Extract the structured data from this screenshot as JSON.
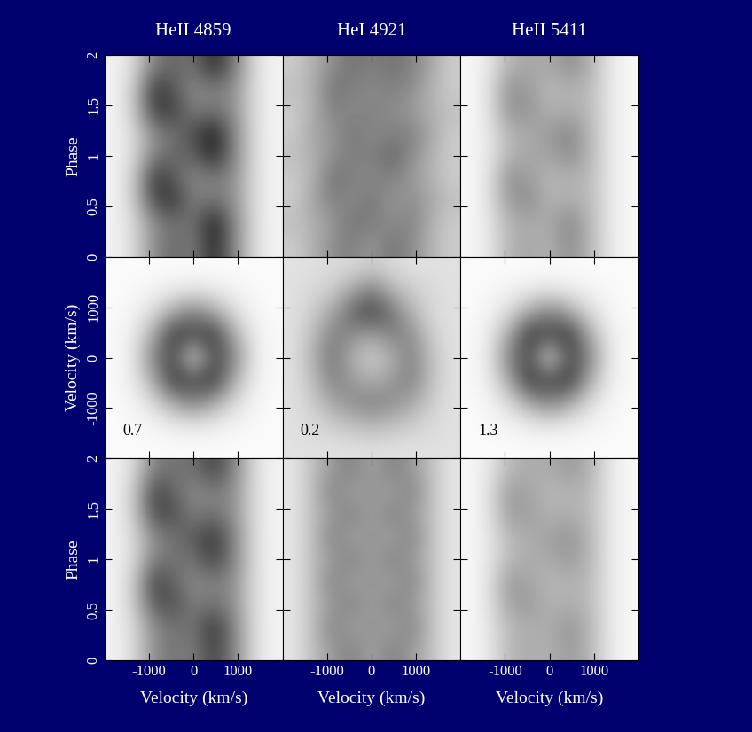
{
  "chart_data": [
    {
      "type": "heatmap",
      "title": "HeII 4859",
      "ylabel": "Phase",
      "tick_labels": "y",
      "xlim": [
        -2000,
        2000
      ],
      "ylim": [
        0,
        2
      ],
      "xticks": [
        -1000,
        0,
        1000
      ],
      "yticks": [
        0,
        0.5,
        1,
        1.5,
        2
      ],
      "zlim": [
        0,
        1
      ],
      "cells": [
        [
          0.05,
          0.15,
          0.45,
          0.6,
          0.5,
          0.85,
          0.5,
          0.15,
          0.05
        ],
        [
          0.05,
          0.15,
          0.45,
          0.55,
          0.55,
          0.9,
          0.5,
          0.15,
          0.05
        ],
        [
          0.05,
          0.2,
          0.7,
          0.8,
          0.5,
          0.55,
          0.45,
          0.15,
          0.05
        ],
        [
          0.05,
          0.2,
          0.8,
          0.65,
          0.45,
          0.5,
          0.45,
          0.15,
          0.05
        ],
        [
          0.05,
          0.15,
          0.5,
          0.6,
          0.6,
          0.85,
          0.5,
          0.15,
          0.05
        ],
        [
          0.05,
          0.15,
          0.45,
          0.55,
          0.7,
          0.9,
          0.5,
          0.15,
          0.05
        ],
        [
          0.05,
          0.2,
          0.75,
          0.75,
          0.5,
          0.55,
          0.45,
          0.15,
          0.05
        ],
        [
          0.05,
          0.2,
          0.8,
          0.65,
          0.45,
          0.5,
          0.45,
          0.15,
          0.05
        ],
        [
          0.05,
          0.15,
          0.5,
          0.6,
          0.55,
          0.85,
          0.55,
          0.15,
          0.05
        ]
      ]
    },
    {
      "type": "heatmap",
      "title": "HeI 4921",
      "tick_labels": false,
      "xlim": [
        -2000,
        2000
      ],
      "ylim": [
        0,
        2
      ],
      "xticks": [
        -1000,
        0,
        1000
      ],
      "yticks": [
        0,
        0.5,
        1,
        1.5,
        2
      ],
      "zlim": [
        0,
        1
      ],
      "cells": [
        [
          0.2,
          0.3,
          0.45,
          0.5,
          0.4,
          0.55,
          0.45,
          0.3,
          0.2
        ],
        [
          0.25,
          0.3,
          0.4,
          0.55,
          0.5,
          0.45,
          0.5,
          0.3,
          0.2
        ],
        [
          0.2,
          0.35,
          0.5,
          0.45,
          0.55,
          0.4,
          0.45,
          0.35,
          0.25
        ],
        [
          0.2,
          0.3,
          0.55,
          0.5,
          0.45,
          0.5,
          0.4,
          0.3,
          0.2
        ],
        [
          0.25,
          0.3,
          0.45,
          0.5,
          0.5,
          0.6,
          0.45,
          0.3,
          0.2
        ],
        [
          0.2,
          0.35,
          0.4,
          0.55,
          0.45,
          0.5,
          0.5,
          0.35,
          0.2
        ],
        [
          0.2,
          0.3,
          0.5,
          0.45,
          0.5,
          0.45,
          0.4,
          0.3,
          0.25
        ],
        [
          0.25,
          0.3,
          0.55,
          0.5,
          0.45,
          0.5,
          0.45,
          0.3,
          0.2
        ],
        [
          0.2,
          0.3,
          0.45,
          0.55,
          0.5,
          0.55,
          0.5,
          0.35,
          0.2
        ]
      ]
    },
    {
      "type": "heatmap",
      "title": "HeII 5411",
      "tick_labels": false,
      "xlim": [
        -2000,
        2000
      ],
      "ylim": [
        0,
        2
      ],
      "xticks": [
        -1000,
        0,
        1000
      ],
      "yticks": [
        0,
        0.5,
        1,
        1.5,
        2
      ],
      "zlim": [
        0,
        1
      ],
      "cells": [
        [
          0.03,
          0.1,
          0.3,
          0.35,
          0.3,
          0.45,
          0.3,
          0.1,
          0.03
        ],
        [
          0.03,
          0.1,
          0.3,
          0.33,
          0.33,
          0.48,
          0.3,
          0.1,
          0.03
        ],
        [
          0.03,
          0.12,
          0.4,
          0.45,
          0.3,
          0.33,
          0.28,
          0.1,
          0.03
        ],
        [
          0.03,
          0.12,
          0.45,
          0.38,
          0.28,
          0.3,
          0.28,
          0.1,
          0.03
        ],
        [
          0.03,
          0.1,
          0.3,
          0.35,
          0.35,
          0.45,
          0.3,
          0.1,
          0.03
        ],
        [
          0.03,
          0.1,
          0.3,
          0.33,
          0.4,
          0.48,
          0.3,
          0.1,
          0.03
        ],
        [
          0.03,
          0.12,
          0.42,
          0.42,
          0.3,
          0.33,
          0.28,
          0.1,
          0.03
        ],
        [
          0.03,
          0.12,
          0.45,
          0.38,
          0.28,
          0.3,
          0.28,
          0.1,
          0.03
        ],
        [
          0.03,
          0.1,
          0.3,
          0.35,
          0.33,
          0.45,
          0.33,
          0.1,
          0.03
        ]
      ]
    },
    {
      "type": "heatmap",
      "ylabel": "Velocity (km/s)",
      "annotation": "0.7",
      "tick_labels": "y",
      "xlim": [
        -2000,
        2000
      ],
      "ylim": [
        -2000,
        2000
      ],
      "xticks": [
        -1000,
        0,
        1000
      ],
      "yticks": [
        -1000,
        0,
        1000
      ],
      "zlim": [
        0,
        1
      ],
      "cells": [
        [
          0.02,
          0.02,
          0.02,
          0.02,
          0.02,
          0.02,
          0.02,
          0.02,
          0.02
        ],
        [
          0.02,
          0.03,
          0.05,
          0.08,
          0.1,
          0.08,
          0.05,
          0.03,
          0.02
        ],
        [
          0.02,
          0.05,
          0.15,
          0.35,
          0.5,
          0.35,
          0.15,
          0.05,
          0.02
        ],
        [
          0.03,
          0.08,
          0.35,
          0.8,
          0.7,
          0.8,
          0.35,
          0.08,
          0.03
        ],
        [
          0.02,
          0.1,
          0.5,
          0.7,
          0.1,
          0.7,
          0.5,
          0.1,
          0.02
        ],
        [
          0.03,
          0.08,
          0.35,
          0.8,
          0.7,
          0.8,
          0.35,
          0.08,
          0.03
        ],
        [
          0.02,
          0.05,
          0.15,
          0.35,
          0.5,
          0.35,
          0.15,
          0.05,
          0.02
        ],
        [
          0.02,
          0.03,
          0.05,
          0.08,
          0.1,
          0.08,
          0.05,
          0.03,
          0.02
        ],
        [
          0.02,
          0.02,
          0.02,
          0.02,
          0.02,
          0.02,
          0.02,
          0.02,
          0.02
        ]
      ]
    },
    {
      "type": "heatmap",
      "annotation": "0.2",
      "tick_labels": false,
      "xlim": [
        -2000,
        2000
      ],
      "ylim": [
        -2000,
        2000
      ],
      "xticks": [
        -1000,
        0,
        1000
      ],
      "yticks": [
        -1000,
        0,
        1000
      ],
      "zlim": [
        0,
        1
      ],
      "cells": [
        [
          0.12,
          0.12,
          0.12,
          0.12,
          0.12,
          0.12,
          0.12,
          0.12,
          0.12
        ],
        [
          0.12,
          0.15,
          0.2,
          0.25,
          0.3,
          0.25,
          0.2,
          0.15,
          0.12
        ],
        [
          0.12,
          0.2,
          0.35,
          0.45,
          0.5,
          0.45,
          0.35,
          0.2,
          0.12
        ],
        [
          0.12,
          0.25,
          0.5,
          0.4,
          0.3,
          0.4,
          0.5,
          0.25,
          0.12
        ],
        [
          0.12,
          0.3,
          0.55,
          0.3,
          0.2,
          0.3,
          0.5,
          0.25,
          0.12
        ],
        [
          0.12,
          0.25,
          0.5,
          0.45,
          0.35,
          0.5,
          0.45,
          0.2,
          0.12
        ],
        [
          0.12,
          0.2,
          0.35,
          0.6,
          0.75,
          0.55,
          0.3,
          0.15,
          0.12
        ],
        [
          0.12,
          0.15,
          0.2,
          0.35,
          0.5,
          0.3,
          0.2,
          0.15,
          0.12
        ],
        [
          0.12,
          0.12,
          0.15,
          0.15,
          0.2,
          0.15,
          0.12,
          0.12,
          0.12
        ]
      ]
    },
    {
      "type": "heatmap",
      "annotation": "1.3",
      "tick_labels": false,
      "xlim": [
        -2000,
        2000
      ],
      "ylim": [
        -2000,
        2000
      ],
      "xticks": [
        -1000,
        0,
        1000
      ],
      "yticks": [
        -1000,
        0,
        1000
      ],
      "zlim": [
        0,
        1
      ],
      "cells": [
        [
          0.02,
          0.02,
          0.02,
          0.02,
          0.02,
          0.02,
          0.02,
          0.02,
          0.02
        ],
        [
          0.02,
          0.03,
          0.05,
          0.08,
          0.1,
          0.08,
          0.05,
          0.03,
          0.02
        ],
        [
          0.02,
          0.05,
          0.15,
          0.35,
          0.5,
          0.35,
          0.15,
          0.05,
          0.02
        ],
        [
          0.03,
          0.08,
          0.35,
          0.8,
          0.7,
          0.8,
          0.35,
          0.08,
          0.03
        ],
        [
          0.02,
          0.1,
          0.5,
          0.7,
          0.1,
          0.7,
          0.5,
          0.1,
          0.02
        ],
        [
          0.03,
          0.08,
          0.35,
          0.8,
          0.7,
          0.8,
          0.35,
          0.08,
          0.03
        ],
        [
          0.02,
          0.05,
          0.15,
          0.35,
          0.5,
          0.35,
          0.15,
          0.05,
          0.02
        ],
        [
          0.02,
          0.03,
          0.05,
          0.08,
          0.1,
          0.08,
          0.05,
          0.03,
          0.02
        ],
        [
          0.02,
          0.02,
          0.02,
          0.02,
          0.02,
          0.02,
          0.02,
          0.02,
          0.02
        ]
      ]
    },
    {
      "type": "heatmap",
      "xlabel": "Velocity (km/s)",
      "ylabel": "Phase",
      "xlim": [
        -2000,
        2000
      ],
      "ylim": [
        0,
        2
      ],
      "xticks": [
        -1000,
        0,
        1000
      ],
      "yticks": [
        0,
        0.5,
        1,
        1.5,
        2
      ],
      "zlim": [
        0,
        1
      ],
      "cells": [
        [
          0.05,
          0.15,
          0.45,
          0.55,
          0.5,
          0.75,
          0.5,
          0.15,
          0.05
        ],
        [
          0.05,
          0.15,
          0.45,
          0.55,
          0.55,
          0.8,
          0.5,
          0.15,
          0.05
        ],
        [
          0.05,
          0.2,
          0.65,
          0.7,
          0.5,
          0.55,
          0.45,
          0.15,
          0.05
        ],
        [
          0.05,
          0.2,
          0.75,
          0.6,
          0.45,
          0.5,
          0.45,
          0.15,
          0.05
        ],
        [
          0.05,
          0.15,
          0.5,
          0.55,
          0.55,
          0.75,
          0.5,
          0.15,
          0.05
        ],
        [
          0.05,
          0.15,
          0.45,
          0.55,
          0.65,
          0.8,
          0.5,
          0.15,
          0.05
        ],
        [
          0.05,
          0.2,
          0.7,
          0.7,
          0.5,
          0.55,
          0.45,
          0.15,
          0.05
        ],
        [
          0.05,
          0.2,
          0.75,
          0.6,
          0.45,
          0.5,
          0.45,
          0.15,
          0.05
        ],
        [
          0.05,
          0.15,
          0.5,
          0.55,
          0.55,
          0.75,
          0.5,
          0.15,
          0.05
        ]
      ]
    },
    {
      "type": "heatmap",
      "xlabel": "Velocity (km/s)",
      "tick_labels": "x",
      "xlim": [
        -2000,
        2000
      ],
      "ylim": [
        0,
        2
      ],
      "xticks": [
        -1000,
        0,
        1000
      ],
      "yticks": [
        0,
        0.5,
        1,
        1.5,
        2
      ],
      "zlim": [
        0,
        1
      ],
      "cells": [
        [
          0.1,
          0.25,
          0.4,
          0.5,
          0.35,
          0.5,
          0.4,
          0.25,
          0.1
        ],
        [
          0.1,
          0.25,
          0.5,
          0.35,
          0.45,
          0.35,
          0.5,
          0.25,
          0.1
        ],
        [
          0.1,
          0.25,
          0.4,
          0.5,
          0.35,
          0.5,
          0.4,
          0.25,
          0.1
        ],
        [
          0.1,
          0.25,
          0.5,
          0.35,
          0.45,
          0.35,
          0.5,
          0.25,
          0.1
        ],
        [
          0.1,
          0.25,
          0.4,
          0.5,
          0.35,
          0.5,
          0.4,
          0.25,
          0.1
        ],
        [
          0.1,
          0.25,
          0.5,
          0.35,
          0.45,
          0.35,
          0.5,
          0.25,
          0.1
        ],
        [
          0.1,
          0.25,
          0.4,
          0.5,
          0.35,
          0.5,
          0.4,
          0.25,
          0.1
        ],
        [
          0.1,
          0.25,
          0.5,
          0.35,
          0.45,
          0.35,
          0.5,
          0.25,
          0.1
        ],
        [
          0.1,
          0.25,
          0.4,
          0.5,
          0.35,
          0.5,
          0.4,
          0.25,
          0.1
        ]
      ]
    },
    {
      "type": "heatmap",
      "xlabel": "Velocity (km/s)",
      "tick_labels": "x",
      "xlim": [
        -2000,
        2000
      ],
      "ylim": [
        0,
        2
      ],
      "xticks": [
        -1000,
        0,
        1000
      ],
      "yticks": [
        0,
        0.5,
        1,
        1.5,
        2
      ],
      "zlim": [
        0,
        1
      ],
      "cells": [
        [
          0.03,
          0.1,
          0.28,
          0.33,
          0.3,
          0.4,
          0.3,
          0.1,
          0.03
        ],
        [
          0.03,
          0.1,
          0.28,
          0.32,
          0.32,
          0.42,
          0.3,
          0.1,
          0.03
        ],
        [
          0.03,
          0.12,
          0.37,
          0.4,
          0.3,
          0.32,
          0.28,
          0.1,
          0.03
        ],
        [
          0.03,
          0.12,
          0.4,
          0.35,
          0.28,
          0.3,
          0.28,
          0.1,
          0.03
        ],
        [
          0.03,
          0.1,
          0.28,
          0.33,
          0.33,
          0.4,
          0.3,
          0.1,
          0.03
        ],
        [
          0.03,
          0.1,
          0.28,
          0.32,
          0.37,
          0.42,
          0.3,
          0.1,
          0.03
        ],
        [
          0.03,
          0.12,
          0.38,
          0.38,
          0.3,
          0.32,
          0.28,
          0.1,
          0.03
        ],
        [
          0.03,
          0.12,
          0.4,
          0.35,
          0.28,
          0.3,
          0.28,
          0.1,
          0.03
        ],
        [
          0.03,
          0.1,
          0.28,
          0.33,
          0.32,
          0.4,
          0.32,
          0.1,
          0.03
        ]
      ]
    }
  ]
}
